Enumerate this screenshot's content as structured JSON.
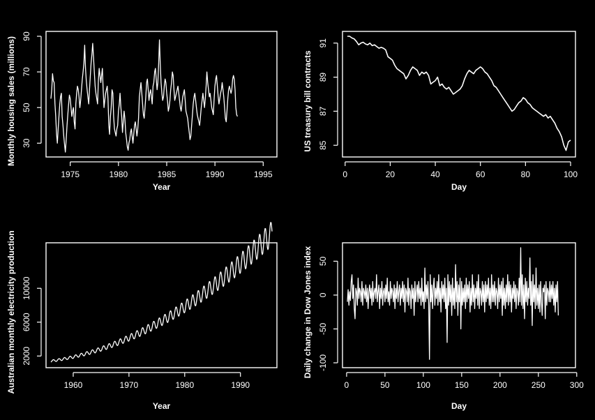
{
  "colors": {
    "background": "#000000",
    "foreground": "#ffffff"
  },
  "chart_data": [
    {
      "type": "line",
      "xlabel": "Year",
      "ylabel": "Monthly housing sales (millions)",
      "xlim": [
        1973,
        1995.917
      ],
      "ylim": [
        25,
        90
      ],
      "x_ticks": [
        1975,
        1980,
        1985,
        1990,
        1995
      ],
      "y_ticks": [
        30,
        50,
        70,
        90
      ],
      "x_start": 1973,
      "x_step": 0.08333,
      "values": [
        55,
        60,
        69,
        65,
        64,
        52,
        45,
        35,
        30,
        38,
        45,
        52,
        56,
        58,
        45,
        40,
        34,
        29,
        25,
        32,
        40,
        46,
        52,
        57,
        55,
        50,
        45,
        48,
        50,
        42,
        38,
        52,
        58,
        62,
        60,
        56,
        50,
        54,
        60,
        66,
        70,
        75,
        85,
        72,
        65,
        60,
        56,
        52,
        60,
        68,
        75,
        80,
        86,
        78,
        70,
        62,
        58,
        55,
        52,
        65,
        72,
        68,
        64,
        68,
        72,
        60,
        50,
        54,
        58,
        60,
        62,
        55,
        40,
        35,
        45,
        50,
        60,
        58,
        45,
        38,
        36,
        34,
        38,
        40,
        48,
        52,
        58,
        50,
        45,
        36,
        42,
        48,
        44,
        36,
        32,
        28,
        26,
        30,
        32,
        36,
        38,
        34,
        30,
        35,
        40,
        42,
        38,
        34,
        38,
        44,
        56,
        60,
        64,
        58,
        52,
        46,
        44,
        50,
        56,
        64,
        66,
        60,
        54,
        58,
        60,
        56,
        52,
        62,
        64,
        70,
        72,
        66,
        60,
        64,
        75,
        88,
        74,
        64,
        58,
        54,
        56,
        62,
        66,
        64,
        58,
        54,
        48,
        50,
        54,
        60,
        64,
        70,
        68,
        60,
        54,
        56,
        58,
        60,
        62,
        58,
        54,
        50,
        48,
        52,
        56,
        58,
        60,
        54,
        48,
        46,
        44,
        40,
        36,
        32,
        34,
        40,
        46,
        52,
        56,
        58,
        54,
        50,
        46,
        44,
        42,
        40,
        45,
        50,
        54,
        58,
        54,
        50,
        55,
        62,
        70,
        64,
        60,
        56,
        58,
        54,
        50,
        48,
        46,
        55,
        62,
        66,
        68,
        62,
        56,
        52,
        55,
        58,
        60,
        64,
        60,
        56,
        50,
        44,
        42,
        48,
        55,
        60,
        62,
        60,
        58,
        60,
        66,
        68,
        66,
        60,
        50,
        46,
        45
      ]
    },
    {
      "type": "line",
      "xlabel": "Day",
      "ylabel": "US treasury bill contracts",
      "xlim": [
        1,
        100
      ],
      "ylim": [
        84.6,
        91.4
      ],
      "x_ticks": [
        0,
        20,
        40,
        60,
        80,
        100
      ],
      "y_ticks": [
        85,
        87,
        89,
        91
      ],
      "x_start": 1,
      "x_step": 1,
      "values": [
        91.4,
        91.4,
        91.3,
        91.25,
        91.1,
        90.9,
        91.0,
        91.05,
        90.95,
        90.9,
        91.0,
        90.85,
        90.9,
        90.8,
        90.7,
        90.75,
        90.7,
        90.6,
        90.2,
        90.1,
        90.0,
        89.7,
        89.5,
        89.4,
        89.3,
        89.2,
        88.9,
        89.1,
        89.4,
        89.6,
        89.5,
        89.4,
        89.1,
        89.3,
        89.2,
        89.3,
        89.1,
        88.6,
        88.7,
        88.8,
        89.0,
        88.5,
        88.6,
        88.4,
        88.3,
        88.4,
        88.2,
        88.0,
        88.1,
        88.2,
        88.3,
        88.5,
        88.9,
        89.2,
        89.4,
        89.3,
        89.2,
        89.4,
        89.5,
        89.6,
        89.5,
        89.3,
        89.2,
        89.0,
        88.8,
        88.5,
        88.4,
        88.2,
        88.0,
        87.8,
        87.6,
        87.4,
        87.2,
        87.0,
        87.1,
        87.3,
        87.5,
        87.6,
        87.8,
        87.7,
        87.5,
        87.4,
        87.2,
        87.1,
        87.0,
        86.9,
        86.8,
        86.7,
        86.8,
        86.6,
        86.7,
        86.5,
        86.3,
        86.0,
        85.8,
        85.5,
        85.0,
        84.7,
        85.2,
        85.3
      ]
    },
    {
      "type": "line",
      "xlabel": "Year",
      "ylabel": "Australian monthly electricity production",
      "xlim": [
        1956,
        1995.667
      ],
      "ylim": [
        1200,
        14800
      ],
      "x_ticks": [
        1960,
        1970,
        1980,
        1990
      ],
      "y_ticks": [
        2000,
        6000,
        10000
      ],
      "series_model": "growth trend with annual cycle",
      "year_start": 1956,
      "year_end": 1995.667
    },
    {
      "type": "line",
      "xlabel": "Day",
      "ylabel": "Daily change in Dow Jones index",
      "xlim": [
        1,
        292
      ],
      "ylim": [
        -100,
        70
      ],
      "x_ticks": [
        0,
        50,
        100,
        150,
        200,
        250,
        300
      ],
      "y_ticks": [
        -100,
        -50,
        0,
        50
      ],
      "x_start": 1,
      "x_step": 1,
      "values": [
        -10,
        8,
        -15,
        5,
        -8,
        20,
        30,
        -5,
        15,
        -20,
        -35,
        10,
        5,
        -15,
        25,
        -5,
        10,
        5,
        -10,
        20,
        -15,
        10,
        5,
        -5,
        15,
        -10,
        10,
        -20,
        5,
        15,
        -5,
        10,
        -15,
        20,
        -10,
        5,
        10,
        -5,
        30,
        -10,
        5,
        15,
        -20,
        10,
        -5,
        20,
        -15,
        5,
        10,
        -10,
        15,
        -5,
        25,
        -10,
        5,
        -15,
        20,
        -5,
        10,
        5,
        -10,
        15,
        -20,
        10,
        -5,
        20,
        -10,
        5,
        15,
        -15,
        10,
        -5,
        20,
        -10,
        15,
        -25,
        10,
        5,
        -10,
        25,
        -15,
        10,
        5,
        -20,
        15,
        -5,
        10,
        -30,
        20,
        -10,
        5,
        15,
        -10,
        20,
        -5,
        10,
        -15,
        25,
        -10,
        5,
        -20,
        40,
        -10,
        15,
        -5,
        20,
        -15,
        -95,
        30,
        -10,
        15,
        -20,
        10,
        25,
        -15,
        10,
        -5,
        20,
        -15,
        30,
        -10,
        10,
        -25,
        20,
        -5,
        15,
        -10,
        25,
        -20,
        10,
        -70,
        30,
        -15,
        20,
        -10,
        15,
        -30,
        25,
        -15,
        10,
        -20,
        45,
        -10,
        20,
        -30,
        15,
        -10,
        25,
        -50,
        20,
        -15,
        10,
        -10,
        15,
        -20,
        25,
        -10,
        15,
        -5,
        20,
        -25,
        10,
        -15,
        30,
        -10,
        15,
        -20,
        10,
        -5,
        20,
        -15,
        30,
        -20,
        10,
        5,
        -15,
        20,
        -10,
        15,
        -25,
        20,
        -10,
        15,
        -5,
        25,
        -15,
        10,
        -20,
        30,
        -10,
        15,
        -10,
        20,
        -15,
        10,
        5,
        -20,
        25,
        -10,
        15,
        -5,
        20,
        -30,
        25,
        -15,
        10,
        -20,
        15,
        -10,
        30,
        -15,
        20,
        -10,
        15,
        -25,
        10,
        -5,
        20,
        -10,
        15,
        -20,
        10,
        5,
        -15,
        25,
        -10,
        70,
        -15,
        30,
        -20,
        15,
        -35,
        25,
        -10,
        20,
        -15,
        10,
        -5,
        55,
        -15,
        20,
        -45,
        30,
        -10,
        15,
        -20,
        40,
        -15,
        10,
        -20,
        15,
        -25,
        20,
        -10,
        -30,
        10,
        5,
        15,
        -35,
        20,
        -15,
        10,
        5,
        -10,
        20,
        -10,
        15,
        -5,
        20,
        -15,
        10,
        -25,
        15,
        -10,
        20,
        -30
      ]
    }
  ]
}
